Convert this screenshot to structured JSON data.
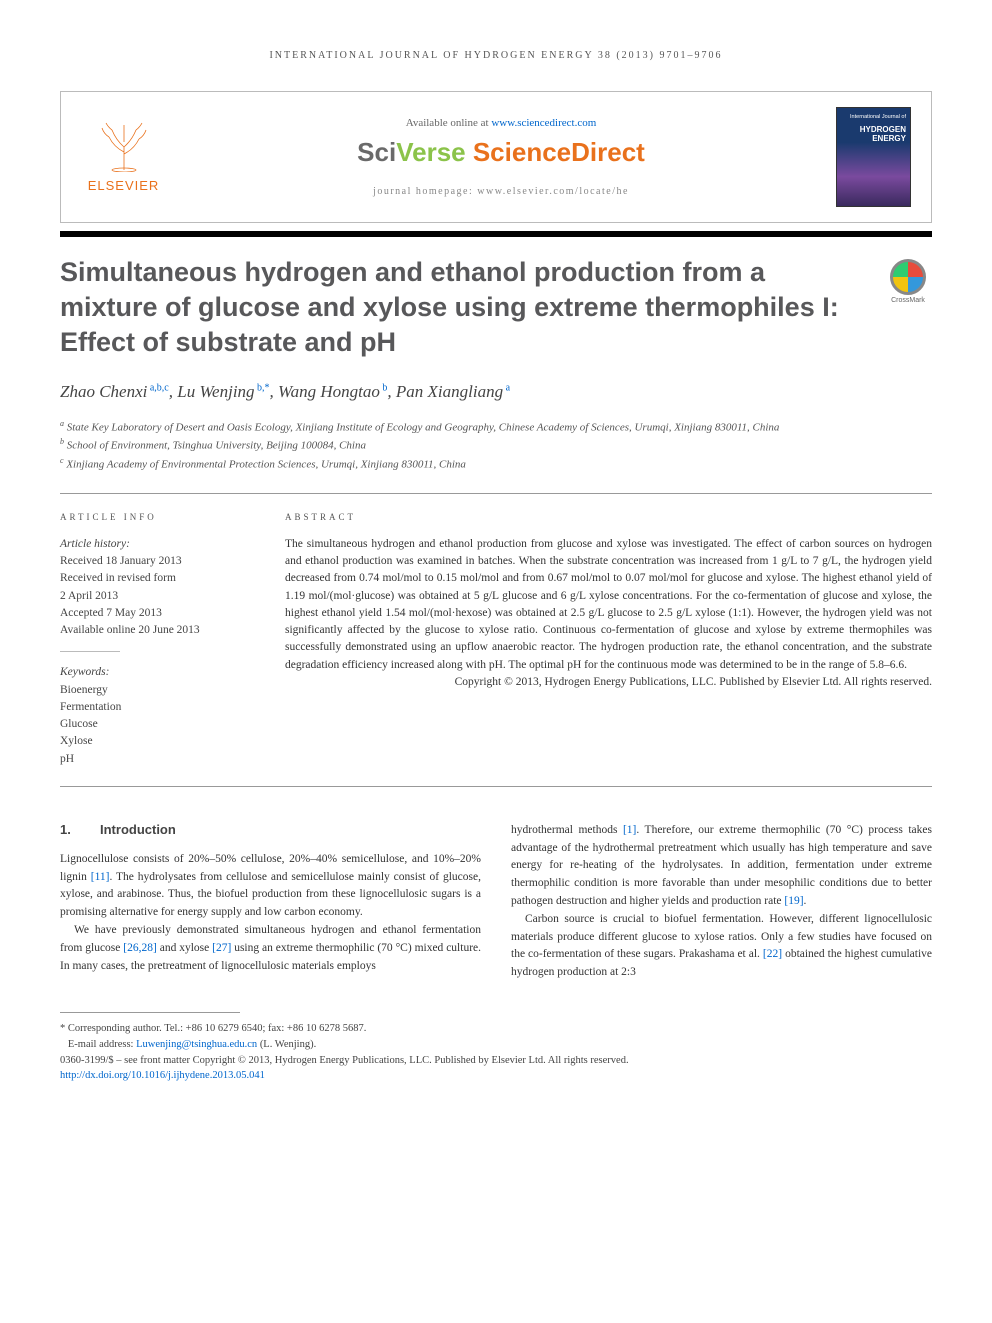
{
  "running_head": "INTERNATIONAL JOURNAL OF HYDROGEN ENERGY 38 (2013) 9701–9706",
  "header": {
    "available_text": "Available online at ",
    "available_link": "www.sciencedirect.com",
    "brand_sci": "Sci",
    "brand_verse": "Verse ",
    "brand_direct": "ScienceDirect",
    "homepage_label": "journal homepage: ",
    "homepage_url": "www.elsevier.com/locate/he",
    "elsevier": "ELSEVIER",
    "cover_small": "International Journal of",
    "cover_main": "HYDROGEN ENERGY"
  },
  "title": "Simultaneous hydrogen and ethanol production from a mixture of glucose and xylose using extreme thermophiles I: Effect of substrate and pH",
  "crossmark": "CrossMark",
  "authors_html": "Zhao Chenxi<sup> a,b,c</sup>, Lu Wenjing<sup> b,*</sup>, Wang Hongtao<sup> b</sup>, Pan Xiangliang<sup> a</sup>",
  "affiliations": [
    "a State Key Laboratory of Desert and Oasis Ecology, Xinjiang Institute of Ecology and Geography, Chinese Academy of Sciences, Urumqi, Xinjiang 830011, China",
    "b School of Environment, Tsinghua University, Beijing 100084, China",
    "c Xinjiang Academy of Environmental Protection Sciences, Urumqi, Xinjiang 830011, China"
  ],
  "article_info": {
    "label": "ARTICLE INFO",
    "history_head": "Article history:",
    "history": [
      "Received 18 January 2013",
      "Received in revised form",
      "2 April 2013",
      "Accepted 7 May 2013",
      "Available online 20 June 2013"
    ],
    "keywords_head": "Keywords:",
    "keywords": [
      "Bioenergy",
      "Fermentation",
      "Glucose",
      "Xylose",
      "pH"
    ]
  },
  "abstract": {
    "label": "ABSTRACT",
    "text": "The simultaneous hydrogen and ethanol production from glucose and xylose was investigated. The effect of carbon sources on hydrogen and ethanol production was examined in batches. When the substrate concentration was increased from 1 g/L to 7 g/L, the hydrogen yield decreased from 0.74 mol/mol to 0.15 mol/mol and from 0.67 mol/mol to 0.07 mol/mol for glucose and xylose. The highest ethanol yield of 1.19 mol/(mol·glucose) was obtained at 5 g/L glucose and 6 g/L xylose concentrations. For the co-fermentation of glucose and xylose, the highest ethanol yield 1.54 mol/(mol·hexose) was obtained at 2.5 g/L glucose to 2.5 g/L xylose (1:1). However, the hydrogen yield was not significantly affected by the glucose to xylose ratio. Continuous co-fermentation of glucose and xylose by extreme thermophiles was successfully demonstrated using an upflow anaerobic reactor. The hydrogen production rate, the ethanol concentration, and the substrate degradation efficiency increased along with pH. The optimal pH for the continuous mode was determined to be in the range of 5.8–6.6.",
    "copyright": "Copyright © 2013, Hydrogen Energy Publications, LLC. Published by Elsevier Ltd. All rights reserved."
  },
  "body": {
    "section_num": "1.",
    "section_title": "Introduction",
    "col1_p1": "Lignocellulose consists of 20%–50% cellulose, 20%–40% semicellulose, and 10%–20% lignin [11]. The hydrolysates from cellulose and semicellulose mainly consist of glucose, xylose, and arabinose. Thus, the biofuel production from these lignocellulosic sugars is a promising alternative for energy supply and low carbon economy.",
    "col1_p2": "We have previously demonstrated simultaneous hydrogen and ethanol fermentation from glucose [26,28] and xylose [27] using an extreme thermophilic (70 °C) mixed culture. In many cases, the pretreatment of lignocellulosic materials employs",
    "col2_p1": "hydrothermal methods [1]. Therefore, our extreme thermophilic (70 °C) process takes advantage of the hydrothermal pretreatment which usually has high temperature and save energy for re-heating of the hydrolysates. In addition, fermentation under extreme thermophilic condition is more favorable than under mesophilic conditions due to better pathogen destruction and higher yields and production rate [19].",
    "col2_p2": "Carbon source is crucial to biofuel fermentation. However, different lignocellulosic materials produce different glucose to xylose ratios. Only a few studies have focused on the co-fermentation of these sugars. Prakashama et al. [22] obtained the highest cumulative hydrogen production at 2:3",
    "refs": {
      "11": "[11]",
      "26_28": "[26,28]",
      "27": "[27]",
      "1": "[1]",
      "19": "[19]",
      "22": "[22]"
    }
  },
  "footer": {
    "corresponding": "* Corresponding author. Tel.: +86 10 6279 6540; fax: +86 10 6278 5687.",
    "email_label": "E-mail address: ",
    "email": "Luwenjing@tsinghua.edu.cn",
    "email_suffix": " (L. Wenjing).",
    "issn_line": "0360-3199/$ – see front matter Copyright © 2013, Hydrogen Energy Publications, LLC. Published by Elsevier Ltd. All rights reserved.",
    "doi": "http://dx.doi.org/10.1016/j.ijhydene.2013.05.041"
  },
  "colors": {
    "orange": "#E9711C",
    "green": "#8BC34A",
    "grey": "#6a6a6a",
    "title_grey": "#58585a",
    "link": "#0066cc"
  }
}
